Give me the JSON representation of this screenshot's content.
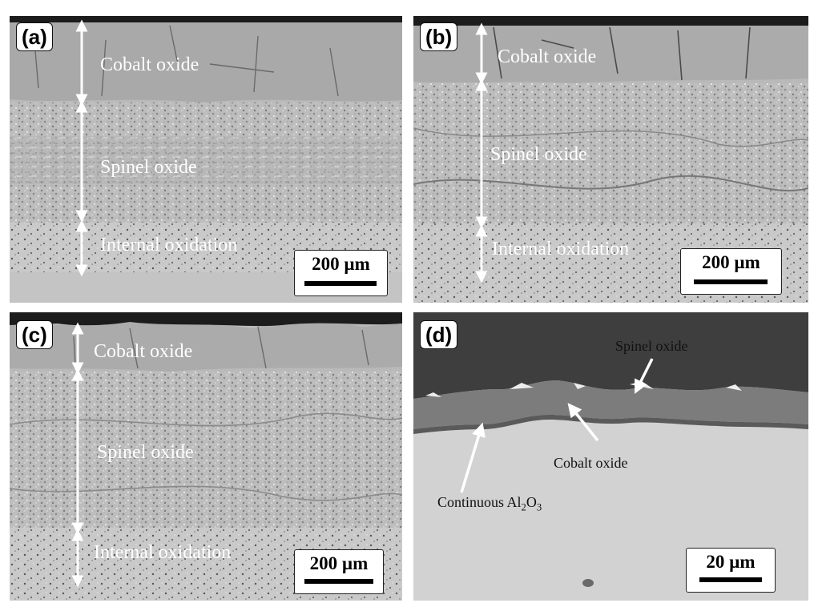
{
  "panels": [
    {
      "tag": "(a)",
      "labels": {
        "cobalt": "Cobalt oxide",
        "spinel": "Spinel oxide",
        "internal": "Internal oxidation"
      },
      "scale": "200 µm"
    },
    {
      "tag": "(b)",
      "labels": {
        "cobalt": "Cobalt oxide",
        "spinel": "Spinel oxide",
        "internal": "Internal oxidation"
      },
      "scale": "200 µm"
    },
    {
      "tag": "(c)",
      "labels": {
        "cobalt": "Cobalt oxide",
        "spinel": "Spinel oxide",
        "internal": "Internal oxidation"
      },
      "scale": "200 µm"
    },
    {
      "tag": "(d)",
      "labels": {
        "spinel": "Spinel oxide",
        "cobalt": "Cobalt oxide",
        "alumina_prefix": "Continuous Al",
        "alumina_sub1": "2",
        "alumina_mid": "O",
        "alumina_sub2": "3"
      },
      "scale": "20 µm"
    }
  ],
  "colors": {
    "arrow": "#ffffff",
    "resin": "#1c1c1c",
    "substrate_d": "#d2d2d2"
  }
}
